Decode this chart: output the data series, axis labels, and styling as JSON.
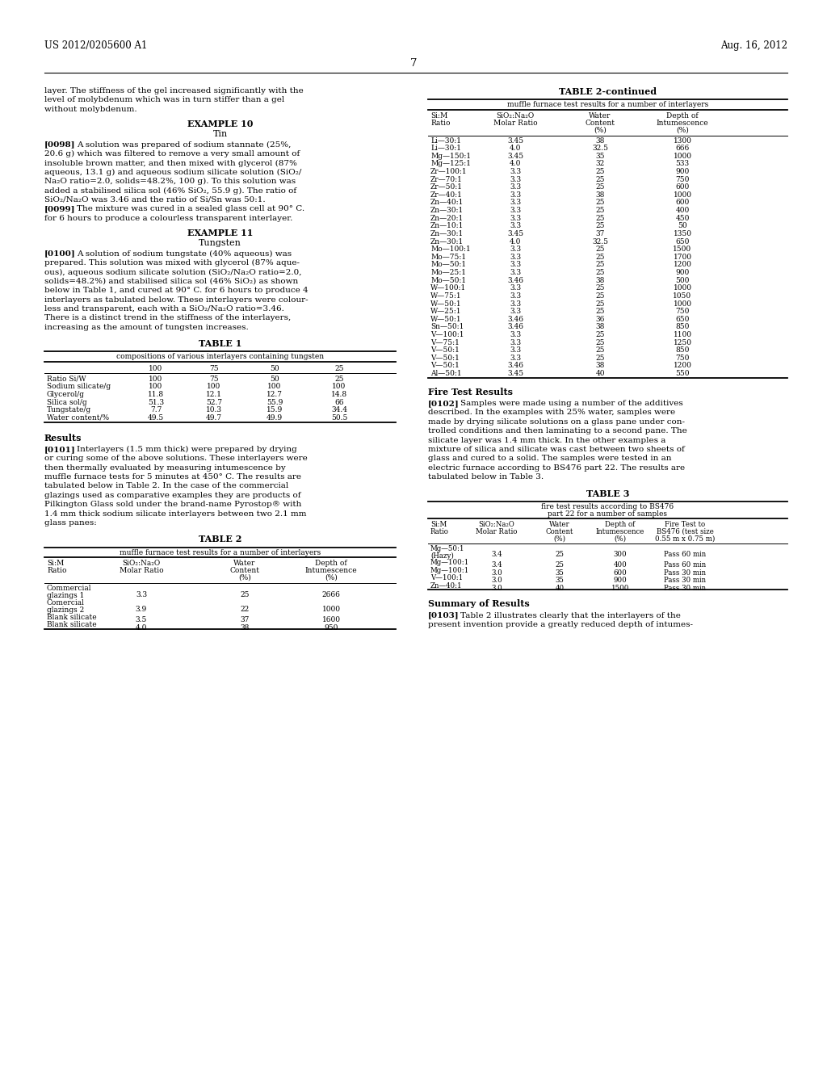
{
  "bg_color": "#ffffff",
  "header_left": "US 2012/0205600 A1",
  "header_right": "Aug. 16, 2012",
  "page_number": "7",
  "table1": {
    "title": "TABLE 1",
    "subtitle": "compositions of various interlayers containing tungsten",
    "col_headers": [
      "",
      "100",
      "75",
      "50",
      "25"
    ],
    "rows": [
      [
        "Ratio Si/W",
        "100",
        "75",
        "50",
        "25"
      ],
      [
        "Sodium silicate/g",
        "100",
        "100",
        "100",
        "100"
      ],
      [
        "Glycerol/g",
        "11.8",
        "12.1",
        "12.7",
        "14.8"
      ],
      [
        "Silica sol/g",
        "51.3",
        "52.7",
        "55.9",
        "66"
      ],
      [
        "Tungstate/g",
        "7.7",
        "10.3",
        "15.9",
        "34.4"
      ],
      [
        "Water content/%",
        "49.5",
        "49.7",
        "49.9",
        "50.5"
      ]
    ]
  },
  "table2": {
    "title": "TABLE 2",
    "subtitle": "muffle furnace test results for a number of interlayers",
    "col_headers": [
      "Si:M\nRatio",
      "SiO2:Na2O\nMolar Ratio",
      "Water\nContent\n(%)",
      "Depth of\nIntumescence\n(%)"
    ],
    "rows": [
      [
        "Commercial\nglazings 1",
        "3.3",
        "25",
        "2666"
      ],
      [
        "Comercial\nglazings 2",
        "3.9",
        "22",
        "1000"
      ],
      [
        "Blank silicate",
        "3.5",
        "37",
        "1600"
      ],
      [
        "Blank silicate",
        "4.0",
        "38",
        "950"
      ]
    ]
  },
  "table2_cont": {
    "title": "TABLE 2-continued",
    "subtitle": "muffle furnace test results for a number of interlayers",
    "col_headers": [
      "Si:M\nRatio",
      "SiO2:Na2O\nMolar Ratio",
      "Water\nContent\n(%)",
      "Depth of\nIntumescence\n(%)"
    ],
    "rows": [
      [
        "Li—30:1",
        "3.45",
        "38",
        "1300"
      ],
      [
        "Li—30:1",
        "4.0",
        "32.5",
        "666"
      ],
      [
        "Mg—150:1",
        "3.45",
        "35",
        "1000"
      ],
      [
        "Mg—125:1",
        "4.0",
        "32",
        "533"
      ],
      [
        "Zr—100:1",
        "3.3",
        "25",
        "900"
      ],
      [
        "Zr—70:1",
        "3.3",
        "25",
        "750"
      ],
      [
        "Zr—50:1",
        "3.3",
        "25",
        "600"
      ],
      [
        "Zr—40:1",
        "3.3",
        "38",
        "1000"
      ],
      [
        "Zn—40:1",
        "3.3",
        "25",
        "600"
      ],
      [
        "Zn—30:1",
        "3.3",
        "25",
        "400"
      ],
      [
        "Zn—20:1",
        "3.3",
        "25",
        "450"
      ],
      [
        "Zn—10:1",
        "3.3",
        "25",
        "50"
      ],
      [
        "Zn—30:1",
        "3.45",
        "37",
        "1350"
      ],
      [
        "Zn—30:1",
        "4.0",
        "32.5",
        "650"
      ],
      [
        "Mo—100:1",
        "3.3",
        "25",
        "1500"
      ],
      [
        "Mo—75:1",
        "3.3",
        "25",
        "1700"
      ],
      [
        "Mo—50:1",
        "3.3",
        "25",
        "1200"
      ],
      [
        "Mo—25:1",
        "3.3",
        "25",
        "900"
      ],
      [
        "Mo—50:1",
        "3.46",
        "38",
        "500"
      ],
      [
        "W—100:1",
        "3.3",
        "25",
        "1000"
      ],
      [
        "W—75:1",
        "3.3",
        "25",
        "1050"
      ],
      [
        "W—50:1",
        "3.3",
        "25",
        "1000"
      ],
      [
        "W—25:1",
        "3.3",
        "25",
        "750"
      ],
      [
        "W—50:1",
        "3.46",
        "36",
        "650"
      ],
      [
        "Sn—50:1",
        "3.46",
        "38",
        "850"
      ],
      [
        "V—100:1",
        "3.3",
        "25",
        "1100"
      ],
      [
        "V—75:1",
        "3.3",
        "25",
        "1250"
      ],
      [
        "V—50:1",
        "3.3",
        "25",
        "850"
      ],
      [
        "V—50:1",
        "3.3",
        "25",
        "750"
      ],
      [
        "V—50:1",
        "3.46",
        "38",
        "1200"
      ],
      [
        "Al—50:1",
        "3.45",
        "40",
        "550"
      ]
    ]
  },
  "table3": {
    "title": "TABLE 3",
    "subtitle_lines": [
      "fire test results according to BS476",
      "part 22 for a number of samples"
    ],
    "col_headers": [
      "Si:M\nRatio",
      "SiO2:Na2O\nMolar Ratio",
      "Water\nContent\n(%)",
      "Depth of\nIntumescence\n(%)",
      "Fire Test to\nBS476 (test size\n0.55 m x 0.75 m)"
    ],
    "rows": [
      [
        "Mg—50:1\n(Hazy)",
        "3.4",
        "25",
        "300",
        "Pass 60 min"
      ],
      [
        "Mg—100:1",
        "3.4",
        "25",
        "400",
        "Pass 60 min"
      ],
      [
        "Mg—100:1",
        "3.0",
        "35",
        "600",
        "Pass 30 min"
      ],
      [
        "V—100:1",
        "3.0",
        "35",
        "900",
        "Pass 30 min"
      ],
      [
        "Zn—40:1",
        "3.0",
        "40",
        "1500",
        "Pass 30 min"
      ]
    ]
  },
  "left_col_lines": {
    "intro": [
      "layer. The stiffness of the gel increased significantly with the",
      "level of molybdenum which was in turn stiffer than a gel",
      "without molybdenum."
    ],
    "ex10_heading": "EXAMPLE 10",
    "ex10_sub": "Tin",
    "p0098_first": "A solution was prepared of sodium stannate (25%,",
    "p0098_rest": [
      "20.6 g) which was filtered to remove a very small amount of",
      "insoluble brown matter, and then mixed with glycerol (87%",
      "aqueous, 13.1 g) and aqueous sodium silicate solution (SiO₂/",
      "Na₂O ratio=2.0, solids=48.2%, 100 g). To this solution was",
      "added a stabilised silica sol (46% SiO₂, 55.9 g). The ratio of",
      "SiO₂/Na₂O was 3.46 and the ratio of Si/Sn was 50:1."
    ],
    "p0099_first": "The mixture was cured in a sealed glass cell at 90° C.",
    "p0099_rest": [
      "for 6 hours to produce a colourless transparent interlayer."
    ],
    "ex11_heading": "EXAMPLE 11",
    "ex11_sub": "Tungsten",
    "p0100_first": "A solution of sodium tungstate (40% aqueous) was",
    "p0100_rest": [
      "prepared. This solution was mixed with glycerol (87% aque-",
      "ous), aqueous sodium silicate solution (SiO₂/Na₂O ratio=2.0,",
      "solids=48.2%) and stabilised silica sol (46% SiO₂) as shown",
      "below in Table 1, and cured at 90° C. for 6 hours to produce 4",
      "interlayers as tabulated below. These interlayers were colour-",
      "less and transparent, each with a SiO₂/Na₂O ratio=3.46.",
      "There is a distinct trend in the stiffness of the interlayers,",
      "increasing as the amount of tungsten increases."
    ],
    "results_heading": "Results",
    "p0101_first": "Interlayers (1.5 mm thick) were prepared by drying",
    "p0101_rest": [
      "or curing some of the above solutions. These interlayers were",
      "then thermally evaluated by measuring intumescence by",
      "muffle furnace tests for 5 minutes at 450° C. The results are",
      "tabulated below in Table 2. In the case of the commercial",
      "glazings used as comparative examples they are products of",
      "Pilkington Glass sold under the brand-name Pyrostop® with",
      "1.4 mm thick sodium silicate interlayers between two 2.1 mm",
      "glass panes:"
    ]
  },
  "right_col_lines": {
    "fire_heading": "Fire Test Results",
    "p0102_first": "Samples were made using a number of the additives",
    "p0102_rest": [
      "described. In the examples with 25% water, samples were",
      "made by drying silicate solutions on a glass pane under con-",
      "trolled conditions and then laminating to a second pane. The",
      "silicate layer was 1.4 mm thick. In the other examples a",
      "mixture of silica and silicate was cast between two sheets of",
      "glass and cured to a solid. The samples were tested in an",
      "electric furnace according to BS476 part 22. The results are",
      "tabulated below in Table 3."
    ],
    "summary_heading": "Summary of Results",
    "p0103_first": "Table 2 illustrates clearly that the interlayers of the",
    "p0103_rest": [
      "present invention provide a greatly reduced depth of intumes-"
    ]
  }
}
